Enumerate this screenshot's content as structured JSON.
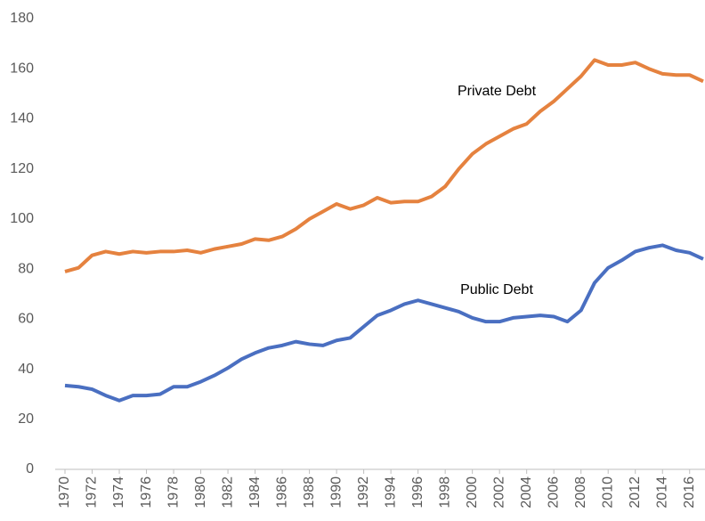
{
  "chart_data": {
    "type": "line",
    "x": [
      1970,
      1971,
      1972,
      1973,
      1974,
      1975,
      1976,
      1977,
      1978,
      1979,
      1980,
      1981,
      1982,
      1983,
      1984,
      1985,
      1986,
      1987,
      1988,
      1989,
      1990,
      1991,
      1992,
      1993,
      1994,
      1995,
      1996,
      1997,
      1998,
      1999,
      2000,
      2001,
      2002,
      2003,
      2004,
      2005,
      2006,
      2007,
      2008,
      2009,
      2010,
      2011,
      2012,
      2013,
      2014,
      2015,
      2016,
      2017
    ],
    "series": [
      {
        "name": "Private Debt",
        "color": "#e5823f",
        "values": [
          79,
          80.5,
          85.5,
          87,
          86,
          87,
          86.5,
          87,
          87,
          87.5,
          86.5,
          88,
          89,
          90,
          92,
          91.5,
          93,
          96,
          100,
          103,
          106,
          104,
          105.5,
          108.5,
          106.5,
          107,
          107,
          109,
          113,
          120,
          126,
          130,
          133,
          136,
          138,
          143,
          147,
          152,
          157,
          163.5,
          161.5,
          161.5,
          162.5,
          160,
          158,
          157.5,
          157.5,
          155
        ]
      },
      {
        "name": "Public Debt",
        "color": "#4a6fc1",
        "values": [
          33.5,
          33,
          32,
          29.5,
          27.5,
          29.5,
          29.5,
          30,
          33,
          33,
          35,
          37.5,
          40.5,
          44,
          46.5,
          48.5,
          49.5,
          51,
          50,
          49.5,
          51.5,
          52.5,
          57,
          61.5,
          63.5,
          66,
          67.5,
          66,
          64.5,
          63,
          60.5,
          59,
          59,
          60.5,
          61,
          61.5,
          61,
          59,
          63.5,
          74.5,
          80.5,
          83.5,
          87,
          88.5,
          89.5,
          87.5,
          86.5,
          84
        ]
      }
    ],
    "xlim": [
      1970,
      2017
    ],
    "xticks": [
      1970,
      1972,
      1974,
      1976,
      1978,
      1980,
      1982,
      1984,
      1986,
      1988,
      1990,
      1992,
      1994,
      1996,
      1998,
      2000,
      2002,
      2004,
      2006,
      2008,
      2010,
      2012,
      2014,
      2016
    ],
    "ylim": [
      0,
      180
    ],
    "yticks": [
      0,
      20,
      40,
      60,
      80,
      100,
      120,
      140,
      160,
      180
    ],
    "grid": false
  }
}
